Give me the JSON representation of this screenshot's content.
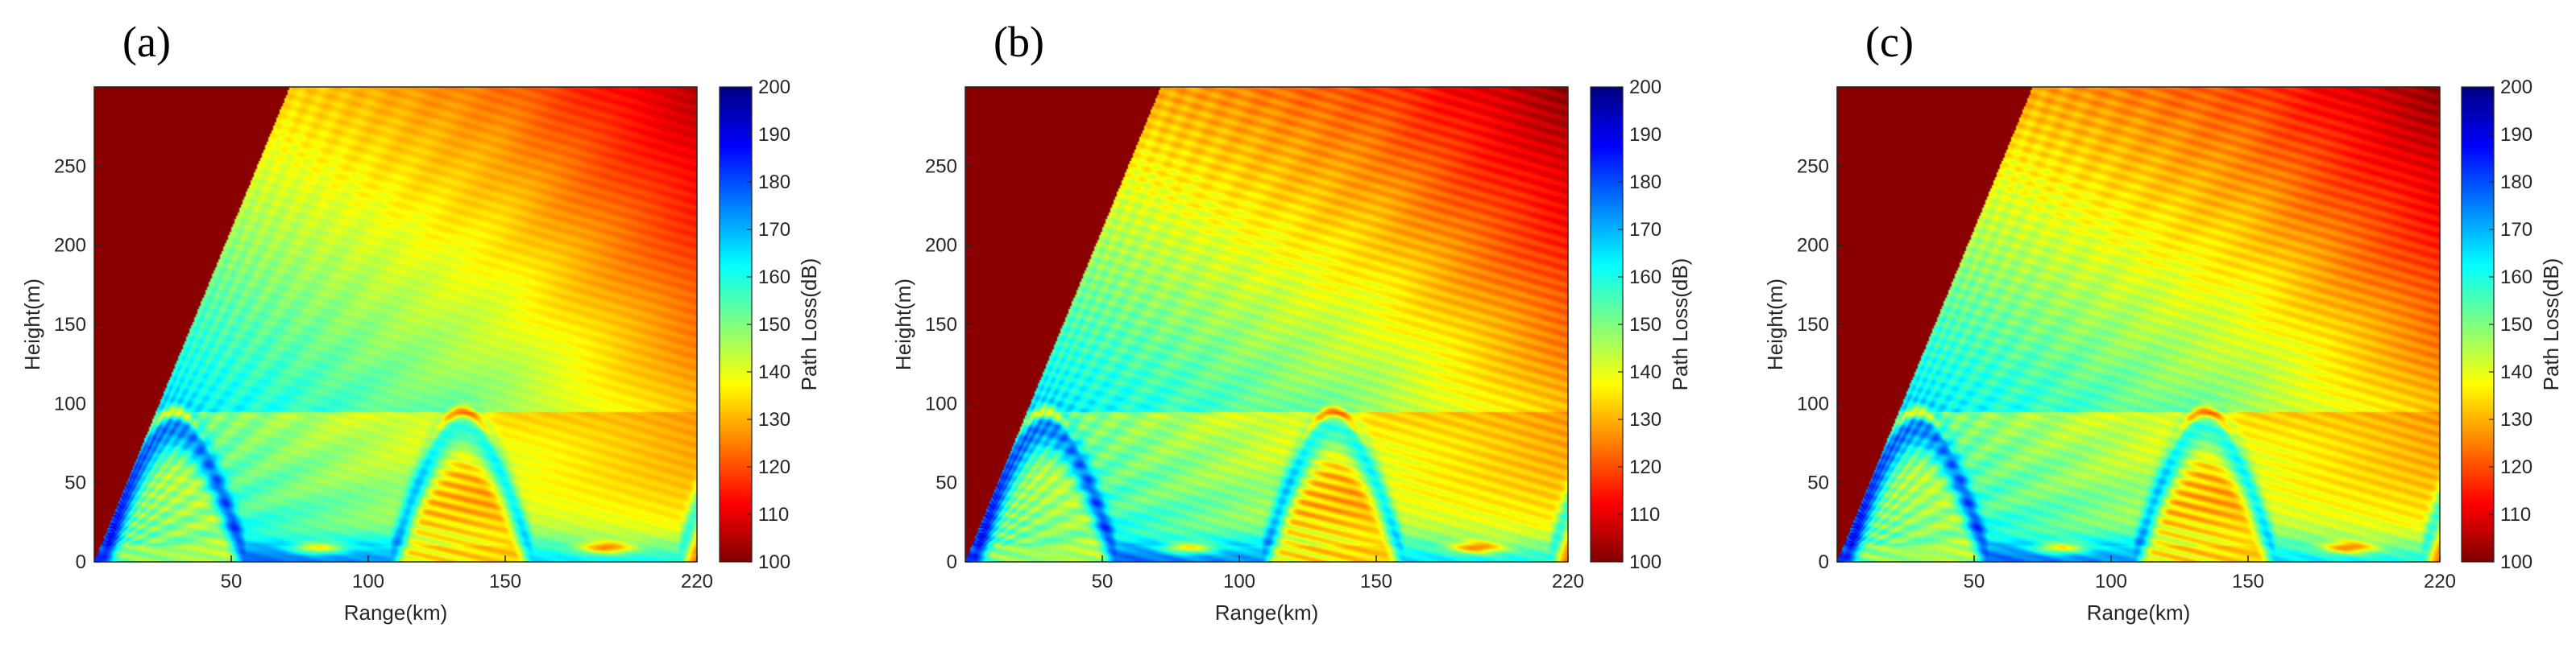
{
  "chart_data": [
    {
      "type": "heatmap",
      "panel_label": "(a)",
      "xlabel": "Range(km)",
      "ylabel": "Height(m)",
      "colorbar_label": "Path Loss(dB)",
      "x_ticks": [
        50,
        100,
        150,
        220
      ],
      "y_ticks": [
        0,
        50,
        100,
        150,
        200,
        250
      ],
      "colorbar_ticks": [
        100,
        110,
        120,
        130,
        140,
        150,
        160,
        170,
        180,
        190,
        200
      ],
      "xlim": [
        0,
        220
      ],
      "ylim": [
        0,
        300
      ],
      "clim": [
        100,
        200
      ],
      "colormap": "jet",
      "duct_height_m": 95,
      "hump_peaks_km": [
        55,
        160
      ],
      "null_ranges_km": [
        105,
        215
      ]
    },
    {
      "type": "heatmap",
      "panel_label": "(b)",
      "xlabel": "Range(km)",
      "ylabel": "Height(m)",
      "colorbar_label": "Path Loss(dB)",
      "x_ticks": [
        50,
        100,
        150,
        220
      ],
      "y_ticks": [
        0,
        50,
        100,
        150,
        200,
        250
      ],
      "colorbar_ticks": [
        100,
        110,
        120,
        130,
        140,
        150,
        160,
        170,
        180,
        190,
        200
      ],
      "xlim": [
        0,
        220
      ],
      "ylim": [
        0,
        300
      ],
      "clim": [
        100,
        200
      ],
      "colormap": "jet",
      "duct_height_m": 95,
      "hump_peaks_km": [
        55,
        160
      ],
      "null_ranges_km": [
        105,
        215
      ]
    },
    {
      "type": "heatmap",
      "panel_label": "(c)",
      "xlabel": "Range(km)",
      "ylabel": "Height(m)",
      "colorbar_label": "Path Loss(dB)",
      "x_ticks": [
        50,
        100,
        150,
        220
      ],
      "y_ticks": [
        0,
        50,
        100,
        150,
        200,
        250
      ],
      "colorbar_ticks": [
        100,
        110,
        120,
        130,
        140,
        150,
        160,
        170,
        180,
        190,
        200
      ],
      "xlim": [
        0,
        220
      ],
      "ylim": [
        0,
        300
      ],
      "clim": [
        100,
        200
      ],
      "colormap": "jet",
      "duct_height_m": 95,
      "hump_peaks_km": [
        55,
        160
      ],
      "null_ranges_km": [
        105,
        215
      ]
    }
  ]
}
